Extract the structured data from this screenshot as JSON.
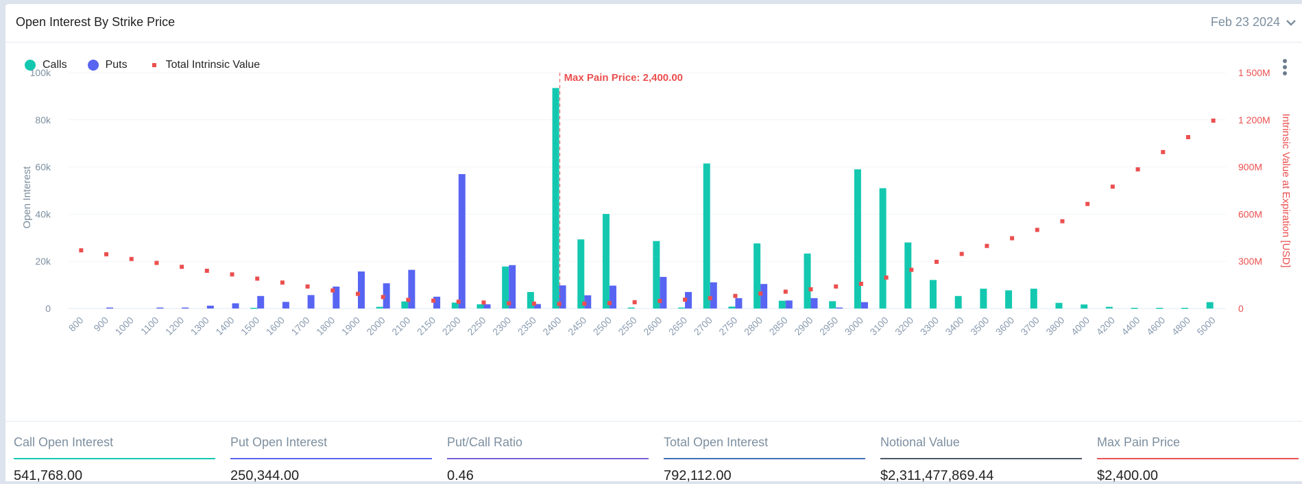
{
  "header": {
    "title": "Open Interest By Strike Price",
    "date": "Feb 23 2024"
  },
  "legend": [
    {
      "label": "Calls",
      "color": "#14c8b0"
    },
    {
      "label": "Puts",
      "color": "#5865f2"
    },
    {
      "label": "Total Intrinsic Value",
      "color": "#eb4f4f"
    }
  ],
  "stats": [
    {
      "label": "Call Open Interest",
      "value": "541,768.00",
      "color": "#14c8b0"
    },
    {
      "label": "Put Open Interest",
      "value": "250,344.00",
      "color": "#5865f2"
    },
    {
      "label": "Put/Call Ratio",
      "value": "0.46",
      "color": "#7a5fd6"
    },
    {
      "label": "Total Open Interest",
      "value": "792,112.00",
      "color": "#3f6fb6"
    },
    {
      "label": "Notional Value",
      "value": "$2,311,477,869.44",
      "color": "#4b5563"
    },
    {
      "label": "Max Pain Price",
      "value": "$2,400.00",
      "color": "#eb4f4f"
    }
  ],
  "chart_data": {
    "type": "bar",
    "title": "Open Interest By Strike Price",
    "xlabel": "",
    "ylabel": "Open Interest",
    "y2label": "Intrinsic Value at Expiration [USD]",
    "ylim": [
      0,
      100000
    ],
    "y2lim": [
      0,
      1500000000
    ],
    "yticks": [
      "0",
      "20k",
      "40k",
      "60k",
      "80k",
      "100k"
    ],
    "y2ticks": [
      "0",
      "300M",
      "600M",
      "900M",
      "1 200M",
      "1 500M"
    ],
    "grid": true,
    "legend_position": "top-left",
    "annotation": {
      "label": "Max Pain Price: 2,400.00",
      "category": "2400"
    },
    "categories": [
      "800",
      "900",
      "1000",
      "1100",
      "1200",
      "1300",
      "1400",
      "1500",
      "1600",
      "1700",
      "1800",
      "1900",
      "2000",
      "2100",
      "2150",
      "2200",
      "2250",
      "2300",
      "2350",
      "2400",
      "2450",
      "2500",
      "2550",
      "2600",
      "2650",
      "2700",
      "2750",
      "2800",
      "2850",
      "2900",
      "2950",
      "3000",
      "3100",
      "3200",
      "3300",
      "3400",
      "3500",
      "3600",
      "3700",
      "3800",
      "4000",
      "4200",
      "4400",
      "4600",
      "4800",
      "5000"
    ],
    "series": [
      {
        "name": "Calls",
        "type": "bar",
        "axis": "left",
        "color": "#14c8b0",
        "values": [
          0,
          0,
          0,
          0,
          0,
          0,
          0,
          300,
          0,
          0,
          0,
          0,
          700,
          3000,
          0,
          2500,
          1800,
          17800,
          7000,
          93500,
          29300,
          40100,
          400,
          28600,
          400,
          61500,
          800,
          27600,
          3300,
          23300,
          3100,
          59000,
          51000,
          28000,
          12100,
          5300,
          8400,
          7700,
          8400,
          2400,
          1700,
          700,
          300,
          300,
          300,
          2700
        ]
      },
      {
        "name": "Puts",
        "type": "bar",
        "axis": "left",
        "color": "#5865f2",
        "values": [
          0,
          400,
          0,
          400,
          400,
          1200,
          2200,
          5300,
          2800,
          5700,
          9300,
          15700,
          10700,
          16400,
          5000,
          57000,
          1800,
          18400,
          1900,
          9800,
          5600,
          9700,
          0,
          13400,
          7000,
          11100,
          4400,
          10400,
          3400,
          4400,
          400,
          2700,
          0,
          0,
          0,
          0,
          0,
          0,
          0,
          0,
          0,
          0,
          0,
          0,
          0,
          0
        ]
      },
      {
        "name": "Total Intrinsic Value",
        "type": "scatter",
        "axis": "right",
        "color": "#eb4f4f",
        "values": [
          370000000,
          345000000,
          315000000,
          290000000,
          265000000,
          240000000,
          217000000,
          190000000,
          165000000,
          140000000,
          115000000,
          93000000,
          73000000,
          55000000,
          50000000,
          43000000,
          38000000,
          33000000,
          31000000,
          29000000,
          31000000,
          34000000,
          40000000,
          48000000,
          56000000,
          66000000,
          80000000,
          95000000,
          107000000,
          122000000,
          140000000,
          157000000,
          197000000,
          246000000,
          297000000,
          347000000,
          398000000,
          447000000,
          500000000,
          555000000,
          665000000,
          775000000,
          885000000,
          995000000,
          1090000000,
          1195000000
        ]
      }
    ]
  }
}
